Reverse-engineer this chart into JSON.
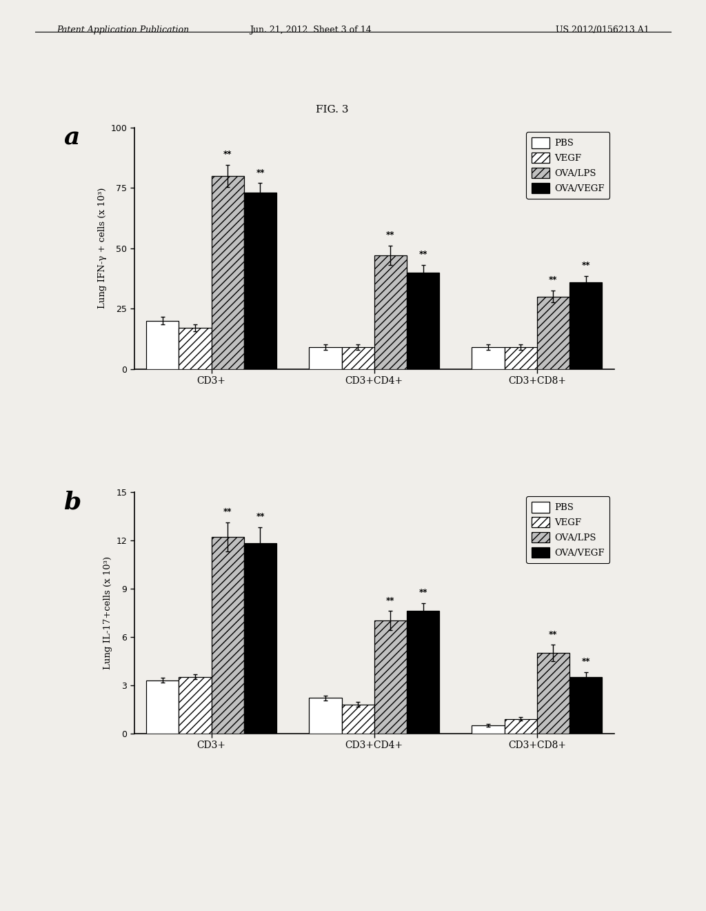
{
  "fig_label": "FIG. 3",
  "panel_a": {
    "ylabel": "Lung IFN-γ + cells (x 10³)",
    "ylim": [
      0,
      100
    ],
    "yticks": [
      0,
      25,
      50,
      75,
      100
    ],
    "groups": [
      "CD3+",
      "CD3+CD4+",
      "CD3+CD8+"
    ],
    "series": [
      "PBS",
      "VEGF",
      "OVA/LPS",
      "OVA/VEGF"
    ],
    "values": [
      [
        20,
        17,
        80,
        73
      ],
      [
        9,
        9,
        47,
        40
      ],
      [
        9,
        9,
        30,
        36
      ]
    ],
    "errors": [
      [
        1.5,
        1.5,
        4.5,
        4.0
      ],
      [
        1.2,
        1.2,
        4.0,
        3.0
      ],
      [
        1.2,
        1.2,
        2.5,
        2.5
      ]
    ],
    "sig_stars": [
      [
        false,
        false,
        true,
        true
      ],
      [
        false,
        false,
        true,
        true
      ],
      [
        false,
        false,
        true,
        true
      ]
    ]
  },
  "panel_b": {
    "ylabel": "Lung IL-17+cells (x 10³)",
    "ylim": [
      0,
      15
    ],
    "yticks": [
      0,
      3,
      6,
      9,
      12,
      15
    ],
    "groups": [
      "CD3+",
      "CD3+CD4+",
      "CD3+CD8+"
    ],
    "series": [
      "PBS",
      "VEGF",
      "OVA/LPS",
      "OVA/VEGF"
    ],
    "values": [
      [
        3.3,
        3.5,
        12.2,
        11.8
      ],
      [
        2.2,
        1.8,
        7.0,
        7.6
      ],
      [
        0.5,
        0.9,
        5.0,
        3.5
      ]
    ],
    "errors": [
      [
        0.15,
        0.15,
        0.9,
        1.0
      ],
      [
        0.15,
        0.15,
        0.6,
        0.5
      ],
      [
        0.08,
        0.1,
        0.5,
        0.3
      ]
    ],
    "sig_stars": [
      [
        false,
        false,
        true,
        true
      ],
      [
        false,
        false,
        true,
        true
      ],
      [
        false,
        false,
        true,
        true
      ]
    ]
  },
  "legend_labels": [
    "PBS",
    "VEGF",
    "OVA/LPS",
    "OVA/VEGF"
  ],
  "colors": [
    "white",
    "white",
    "lightgray",
    "black"
  ],
  "hatches": [
    "",
    "////",
    "////",
    ""
  ],
  "vegf_hatch": "////",
  "ova_lps_hatch": "////",
  "bar_width": 0.16,
  "background_color": "#f0eeea",
  "header_text_left": "Patent Application Publication",
  "header_text_mid": "Jun. 21, 2012  Sheet 3 of 14",
  "header_text_right": "US 2012/0156213 A1"
}
